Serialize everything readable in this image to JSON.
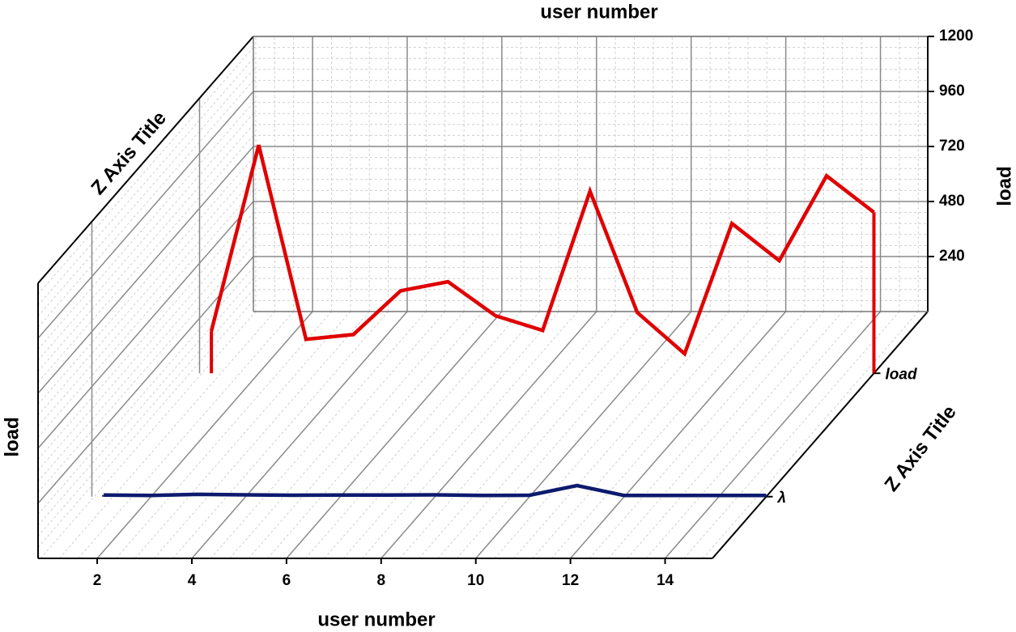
{
  "chart_data": {
    "type": "line",
    "xlabel": "user number",
    "ylabel": "load",
    "zlabel": "Z Axis Title",
    "x": [
      1,
      2,
      3,
      4,
      5,
      6,
      7,
      8,
      9,
      10,
      11,
      12,
      13,
      14,
      15
    ],
    "series": [
      {
        "name": "λ",
        "color": "#0d1a6e",
        "values": [
          7,
          5,
          10,
          8,
          6,
          7,
          7,
          8,
          5,
          6,
          48,
          5,
          5,
          5,
          5
        ]
      },
      {
        "name": "load",
        "color": "#e00000",
        "values": [
          184,
          995,
          148,
          169,
          360,
          399,
          251,
          187,
          794,
          265,
          85,
          653,
          491,
          861,
          702
        ]
      }
    ],
    "xlim": [
      0.75,
      15
    ],
    "xticks": [
      2,
      4,
      6,
      8,
      10,
      12,
      14
    ],
    "ylim": [
      0,
      1200
    ],
    "yticks": [
      240,
      480,
      720,
      960,
      1200
    ],
    "grid": true
  }
}
